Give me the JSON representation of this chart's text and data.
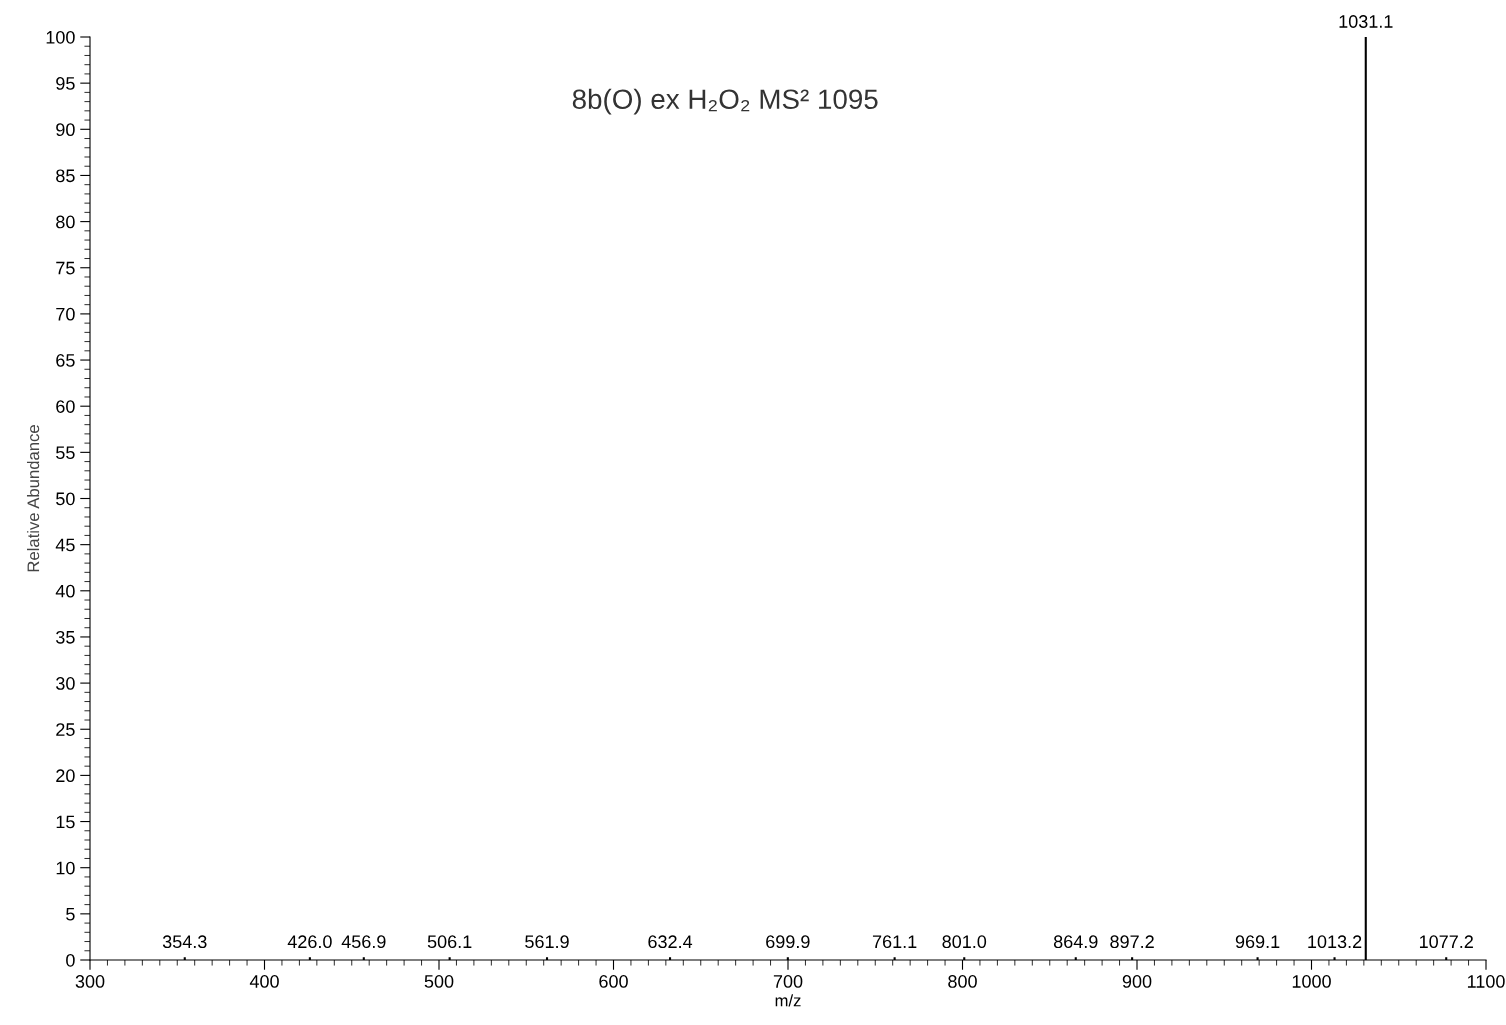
{
  "chart_data": {
    "type": "bar",
    "title": "8b(O) ex H₂O₂ MS² 1095",
    "xlabel": "m/z",
    "ylabel": "Relative Abundance",
    "x": [
      354.3,
      426.0,
      456.9,
      506.1,
      561.9,
      632.4,
      699.9,
      761.1,
      801.0,
      864.9,
      897.2,
      969.1,
      1013.2,
      1031.1,
      1077.2
    ],
    "values": [
      0.3,
      0.3,
      0.3,
      0.3,
      0.3,
      0.3,
      0.3,
      0.3,
      0.3,
      0.3,
      0.3,
      0.3,
      0.3,
      100,
      0.3
    ],
    "annotations": [
      {
        "text": "354.3",
        "x": 354.3,
        "y": 0.3
      },
      {
        "text": "426.0",
        "x": 426.0,
        "y": 0.3
      },
      {
        "text": "456.9",
        "x": 456.9,
        "y": 0.3
      },
      {
        "text": "506.1",
        "x": 506.1,
        "y": 0.3
      },
      {
        "text": "561.9",
        "x": 561.9,
        "y": 0.3
      },
      {
        "text": "632.4",
        "x": 632.4,
        "y": 0.3
      },
      {
        "text": "699.9",
        "x": 699.9,
        "y": 0.3
      },
      {
        "text": "761.1",
        "x": 761.1,
        "y": 0.3
      },
      {
        "text": "801.0",
        "x": 801.0,
        "y": 0.3
      },
      {
        "text": "864.9",
        "x": 864.9,
        "y": 0.3
      },
      {
        "text": "897.2",
        "x": 897.2,
        "y": 0.3
      },
      {
        "text": "969.1",
        "x": 969.1,
        "y": 0.3
      },
      {
        "text": "1013.2",
        "x": 1013.2,
        "y": 0.3
      },
      {
        "text": "1031.1",
        "x": 1031.1,
        "y": 100
      },
      {
        "text": "1077.2",
        "x": 1077.2,
        "y": 0.3
      }
    ],
    "color": "#000000",
    "xlim": [
      300,
      1100
    ],
    "xticks": [
      300,
      400,
      500,
      600,
      700,
      800,
      900,
      1000,
      1100
    ],
    "ylim": [
      0,
      100
    ],
    "yticks": [
      0,
      5,
      10,
      15,
      20,
      25,
      30,
      35,
      40,
      45,
      50,
      55,
      60,
      65,
      70,
      75,
      80,
      85,
      90,
      95,
      100
    ],
    "grid": false,
    "legend": false
  }
}
